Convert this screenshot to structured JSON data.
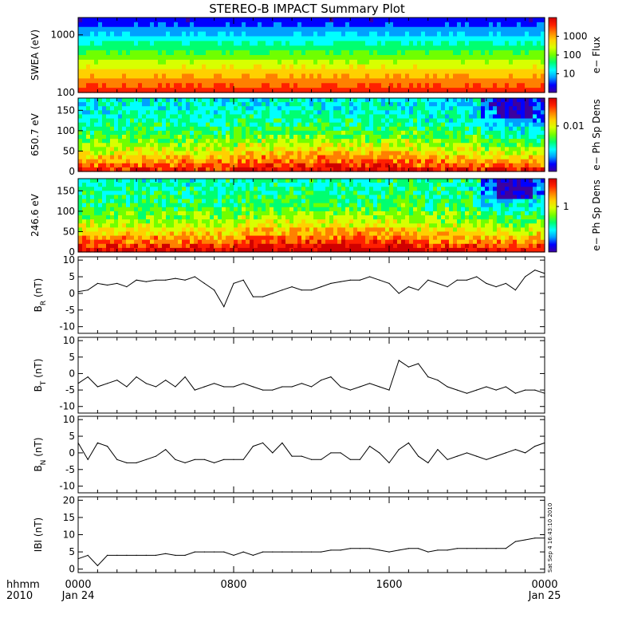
{
  "title": "STEREO-B IMPACT Summary Plot",
  "stamp": "Sat Sep  4 16:43:10 2010",
  "x_axis": {
    "row1_left": "hhmm",
    "row2_left": "2010",
    "ticks": [
      {
        "hour": 0,
        "label": "0000",
        "sub": "Jan 24"
      },
      {
        "hour": 8,
        "label": "0800",
        "sub": ""
      },
      {
        "hour": 16,
        "label": "1600",
        "sub": ""
      },
      {
        "hour": 24,
        "label": "0000",
        "sub": "Jan 25"
      }
    ]
  },
  "colors": {
    "spectrogram_scale": [
      "#3c00a0",
      "#0000ff",
      "#00a0ff",
      "#00ffff",
      "#00ff70",
      "#70ff00",
      "#d8ff00",
      "#ffd000",
      "#ff8000",
      "#ff2000",
      "#d00000"
    ],
    "line": "#000000"
  },
  "chart_data": [
    {
      "type": "heatmap",
      "ylabel": "SWEA (eV)",
      "ylog": true,
      "ylim": [
        100,
        2000
      ],
      "yticks": [
        {
          "v": 100,
          "label": "100"
        },
        {
          "v": 1000,
          "label": "1000"
        }
      ],
      "colorbar_label": "e− Flux",
      "colorbar_ticks": [
        "10",
        "100",
        "1000"
      ],
      "note": "flux high at low energy (red) decreasing to low at high energy (blue)"
    },
    {
      "type": "heatmap",
      "ylabel": "650.7 eV",
      "ylim": [
        0,
        180
      ],
      "yticks": [
        {
          "v": 0,
          "label": "0"
        },
        {
          "v": 50,
          "label": "50"
        },
        {
          "v": 100,
          "label": "100"
        },
        {
          "v": 150,
          "label": "150"
        }
      ],
      "colorbar_label": "e− Ph Sp Dens",
      "colorbar_ticks": [
        "0.01"
      ]
    },
    {
      "type": "heatmap",
      "ylabel": "246.6 eV",
      "ylim": [
        0,
        180
      ],
      "yticks": [
        {
          "v": 0,
          "label": "0"
        },
        {
          "v": 50,
          "label": "50"
        },
        {
          "v": 100,
          "label": "100"
        },
        {
          "v": 150,
          "label": "150"
        }
      ],
      "colorbar_label": "e− Ph Sp Dens",
      "colorbar_ticks": [
        "1"
      ]
    },
    {
      "type": "line",
      "ylabel": "B",
      "ysub": "R",
      "yunit": "(nT)",
      "ylim": [
        -12,
        11
      ],
      "yticks": [
        -10,
        -5,
        0,
        5,
        10
      ],
      "x": [
        0,
        0.5,
        1,
        1.5,
        2,
        2.5,
        3,
        3.5,
        4,
        4.5,
        5,
        5.5,
        6,
        6.5,
        7,
        7.5,
        8,
        8.5,
        9,
        9.5,
        10,
        10.5,
        11,
        11.5,
        12,
        12.5,
        13,
        13.5,
        14,
        14.5,
        15,
        15.5,
        16,
        16.5,
        17,
        17.5,
        18,
        18.5,
        19,
        19.5,
        20,
        20.5,
        21,
        21.5,
        22,
        22.5,
        23,
        23.5,
        24
      ],
      "y": [
        0.5,
        1,
        3,
        2.5,
        3,
        2,
        4,
        3.5,
        4,
        4,
        4.5,
        4,
        5,
        3,
        1,
        -4,
        3,
        4,
        -1,
        -1,
        0,
        1,
        2,
        1,
        1,
        2,
        3,
        3.5,
        4,
        4,
        5,
        4,
        3,
        0,
        2,
        1,
        4,
        3,
        2,
        4,
        4,
        5,
        3,
        2,
        3,
        1,
        5,
        7,
        6
      ]
    },
    {
      "type": "line",
      "ylabel": "B",
      "ysub": "T",
      "yunit": "(nT)",
      "ylim": [
        -12,
        11
      ],
      "yticks": [
        -10,
        -5,
        0,
        5,
        10
      ],
      "x": [
        0,
        0.5,
        1,
        1.5,
        2,
        2.5,
        3,
        3.5,
        4,
        4.5,
        5,
        5.5,
        6,
        6.5,
        7,
        7.5,
        8,
        8.5,
        9,
        9.5,
        10,
        10.5,
        11,
        11.5,
        12,
        12.5,
        13,
        13.5,
        14,
        14.5,
        15,
        15.5,
        16,
        16.5,
        17,
        17.5,
        18,
        18.5,
        19,
        19.5,
        20,
        20.5,
        21,
        21.5,
        22,
        22.5,
        23,
        23.5,
        24
      ],
      "y": [
        -3,
        -1,
        -4,
        -3,
        -2,
        -4,
        -1,
        -3,
        -4,
        -2,
        -4,
        -1,
        -5,
        -4,
        -3,
        -4,
        -4,
        -3,
        -4,
        -5,
        -5,
        -4,
        -4,
        -3,
        -4,
        -2,
        -1,
        -4,
        -5,
        -4,
        -3,
        -4,
        -5,
        4,
        2,
        3,
        -1,
        -2,
        -4,
        -5,
        -6,
        -5,
        -4,
        -5,
        -4,
        -6,
        -5,
        -5,
        -6
      ]
    },
    {
      "type": "line",
      "ylabel": "B",
      "ysub": "N",
      "yunit": "(nT)",
      "ylim": [
        -12,
        11
      ],
      "yticks": [
        -10,
        -5,
        0,
        5,
        10
      ],
      "x": [
        0,
        0.5,
        1,
        1.5,
        2,
        2.5,
        3,
        3.5,
        4,
        4.5,
        5,
        5.5,
        6,
        6.5,
        7,
        7.5,
        8,
        8.5,
        9,
        9.5,
        10,
        10.5,
        11,
        11.5,
        12,
        12.5,
        13,
        13.5,
        14,
        14.5,
        15,
        15.5,
        16,
        16.5,
        17,
        17.5,
        18,
        18.5,
        19,
        19.5,
        20,
        20.5,
        21,
        21.5,
        22,
        22.5,
        23,
        23.5,
        24
      ],
      "y": [
        3,
        -2,
        3,
        2,
        -2,
        -3,
        -3,
        -2,
        -1,
        1,
        -2,
        -3,
        -2,
        -2,
        -3,
        -2,
        -2,
        -2,
        2,
        3,
        0,
        3,
        -1,
        -1,
        -2,
        -2,
        0,
        0,
        -2,
        -2,
        2,
        0,
        -3,
        1,
        3,
        -1,
        -3,
        1,
        -2,
        -1,
        0,
        -1,
        -2,
        -1,
        0,
        1,
        0,
        2,
        3
      ]
    },
    {
      "type": "line",
      "ylabel": "IBI",
      "ysub": "",
      "yunit": "(nT)",
      "ylim": [
        -1,
        21
      ],
      "yticks": [
        0,
        5,
        10,
        15,
        20
      ],
      "x": [
        0,
        0.5,
        1,
        1.5,
        2,
        2.5,
        3,
        3.5,
        4,
        4.5,
        5,
        5.5,
        6,
        6.5,
        7,
        7.5,
        8,
        8.5,
        9,
        9.5,
        10,
        10.5,
        11,
        11.5,
        12,
        12.5,
        13,
        13.5,
        14,
        14.5,
        15,
        15.5,
        16,
        16.5,
        17,
        17.5,
        18,
        18.5,
        19,
        19.5,
        20,
        20.5,
        21,
        21.5,
        22,
        22.5,
        23,
        23.5,
        24
      ],
      "y": [
        3,
        4,
        1,
        4,
        4,
        4,
        4,
        4,
        4,
        4.5,
        4,
        4,
        5,
        5,
        5,
        5,
        4,
        5,
        4,
        5,
        5,
        5,
        5,
        5,
        5,
        5,
        5.5,
        5.5,
        6,
        6,
        6,
        5.5,
        5,
        5.5,
        6,
        6,
        5,
        5.5,
        5.5,
        6,
        6,
        6,
        6,
        6,
        6,
        8,
        8.5,
        9,
        9
      ]
    }
  ]
}
